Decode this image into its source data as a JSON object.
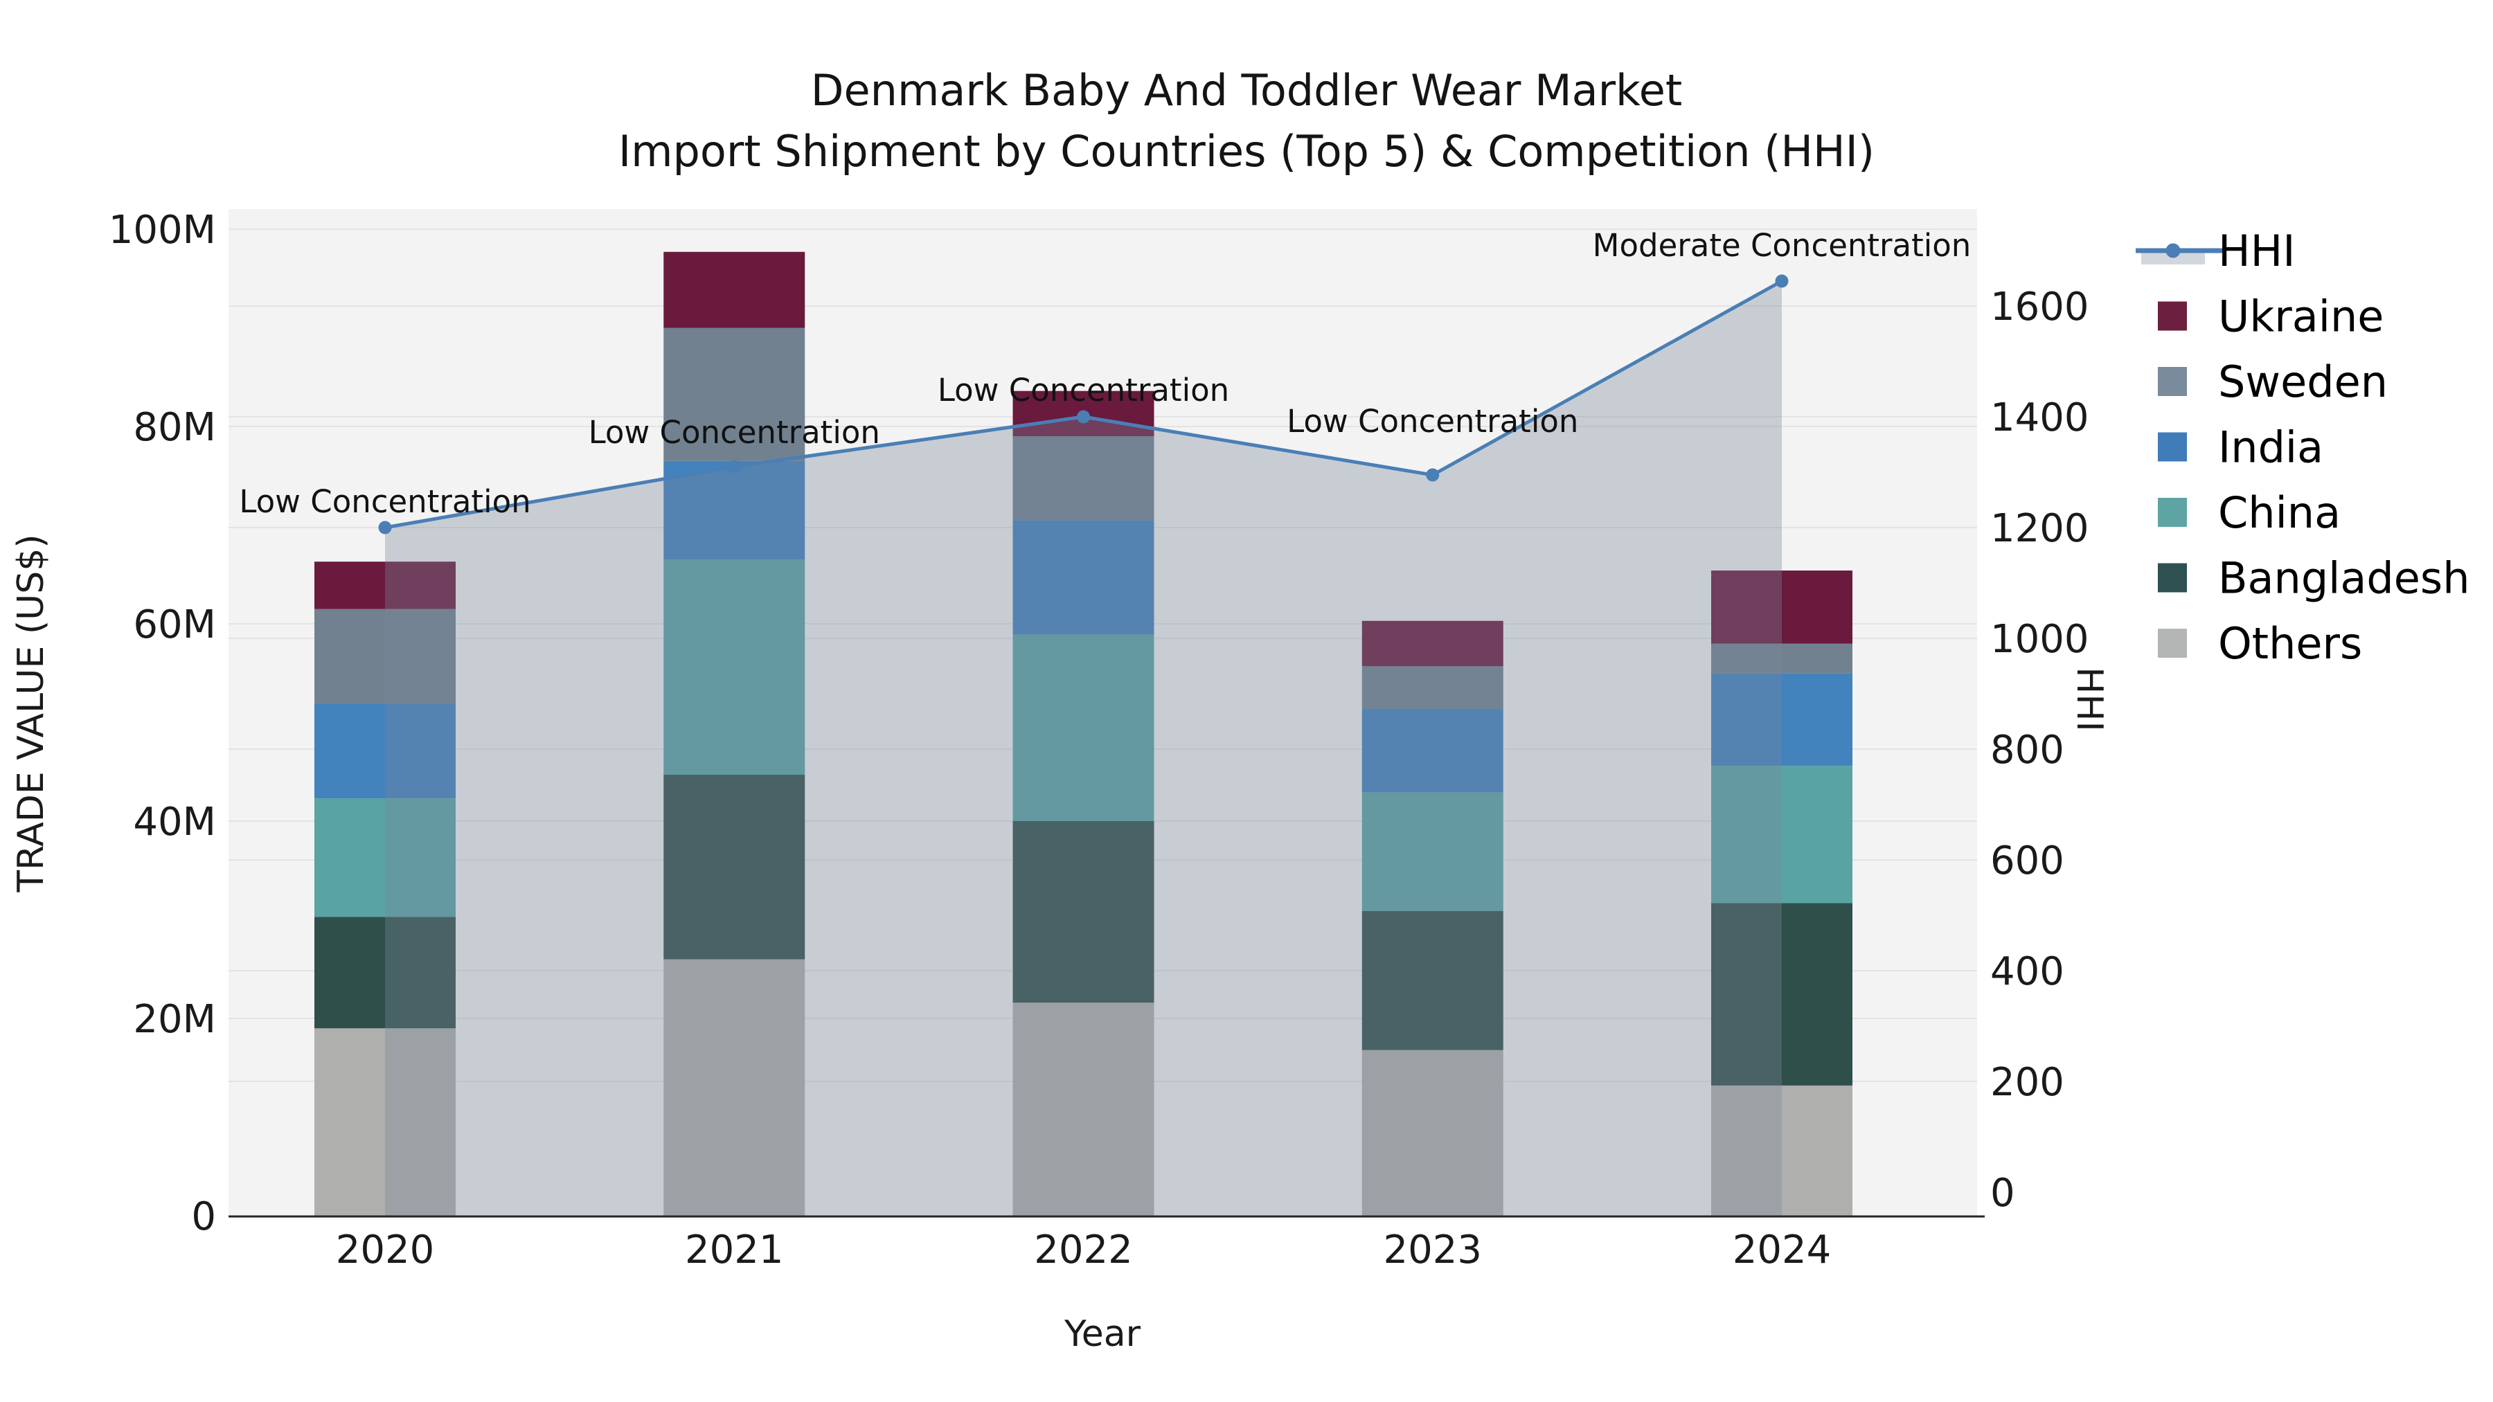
{
  "figure": {
    "title_line1": "Denmark Baby And Toddler Wear Market",
    "title_line2": "Import Shipment by Countries (Top 5) & Competition (HHI)",
    "plot_background": "#f3f3f3",
    "gridline_color": "#e3e3e3",
    "spine_color": "#262626"
  },
  "axes": {
    "x": {
      "label": "Year",
      "tick_labels": [
        "2020",
        "2021",
        "2022",
        "2023",
        "2024"
      ]
    },
    "y_left": {
      "label": "TRADE VALUE (US$)",
      "tick_labels": [
        "0",
        "20M",
        "40M",
        "60M",
        "80M",
        "100M"
      ],
      "tick_values_millions": [
        0,
        20,
        40,
        60,
        80,
        100
      ]
    },
    "y_right": {
      "label": "HHI",
      "tick_labels": [
        "0",
        "200",
        "400",
        "600",
        "800",
        "1000",
        "1200",
        "1400",
        "1600"
      ],
      "tick_values": [
        0,
        200,
        400,
        600,
        800,
        1000,
        1200,
        1400,
        1600
      ]
    }
  },
  "chart_data": {
    "type": "stacked-bar+line",
    "categories": [
      "2020",
      "2021",
      "2022",
      "2023",
      "2024"
    ],
    "bar_unit": "USD millions",
    "ylim_left_millions": [
      0,
      100
    ],
    "grid": true,
    "legend_position": "right",
    "series": [
      {
        "name": "Others",
        "color": "#AFAFAD",
        "values": [
          19.0,
          26.0,
          21.6,
          16.8,
          13.2
        ]
      },
      {
        "name": "Bangladesh",
        "color": "#2F4F4B",
        "values": [
          11.3,
          18.7,
          18.4,
          14.1,
          18.5
        ]
      },
      {
        "name": "China",
        "color": "#5AA3A3",
        "values": [
          12.0,
          21.8,
          18.9,
          12.0,
          13.9
        ]
      },
      {
        "name": "India",
        "color": "#4282BD",
        "values": [
          9.6,
          10.0,
          11.6,
          8.5,
          9.4
        ]
      },
      {
        "name": "Sweden",
        "color": "#71818F",
        "values": [
          9.6,
          13.5,
          8.5,
          4.3,
          3.0
        ]
      },
      {
        "name": "Ukraine",
        "color": "#6A1A3D",
        "values": [
          4.8,
          7.7,
          4.6,
          4.6,
          7.4
        ]
      }
    ],
    "bar_totals_millions": [
      66.3,
      97.6,
      83.6,
      60.3,
      65.4
    ],
    "line_series": {
      "name": "HHI",
      "color": "#4A7FB5",
      "values": [
        1200,
        1310,
        1400,
        1295,
        1645
      ],
      "area_fill": "rgba(120,135,155,0.35)"
    },
    "annotations": [
      {
        "category": "2020",
        "text": "Low Concentration"
      },
      {
        "category": "2021",
        "text": "Low Concentration"
      },
      {
        "category": "2022",
        "text": "Low Concentration"
      },
      {
        "category": "2023",
        "text": "Low Concentration"
      },
      {
        "category": "2024",
        "text": "Moderate Concentration"
      }
    ]
  },
  "legend": {
    "items": [
      {
        "label": "HHI",
        "type": "line",
        "color": "#4A7FB5",
        "patch_color": "#d2d7dd"
      },
      {
        "label": "Ukraine",
        "type": "swatch",
        "color": "#6D1F40"
      },
      {
        "label": "Sweden",
        "type": "swatch",
        "color": "#7A8B9C"
      },
      {
        "label": "India",
        "type": "swatch",
        "color": "#3F7CB8"
      },
      {
        "label": "China",
        "type": "swatch",
        "color": "#5FA4A4"
      },
      {
        "label": "Bangladesh",
        "type": "swatch",
        "color": "#2E5050"
      },
      {
        "label": "Others",
        "type": "swatch",
        "color": "#B3B6B5"
      }
    ]
  }
}
